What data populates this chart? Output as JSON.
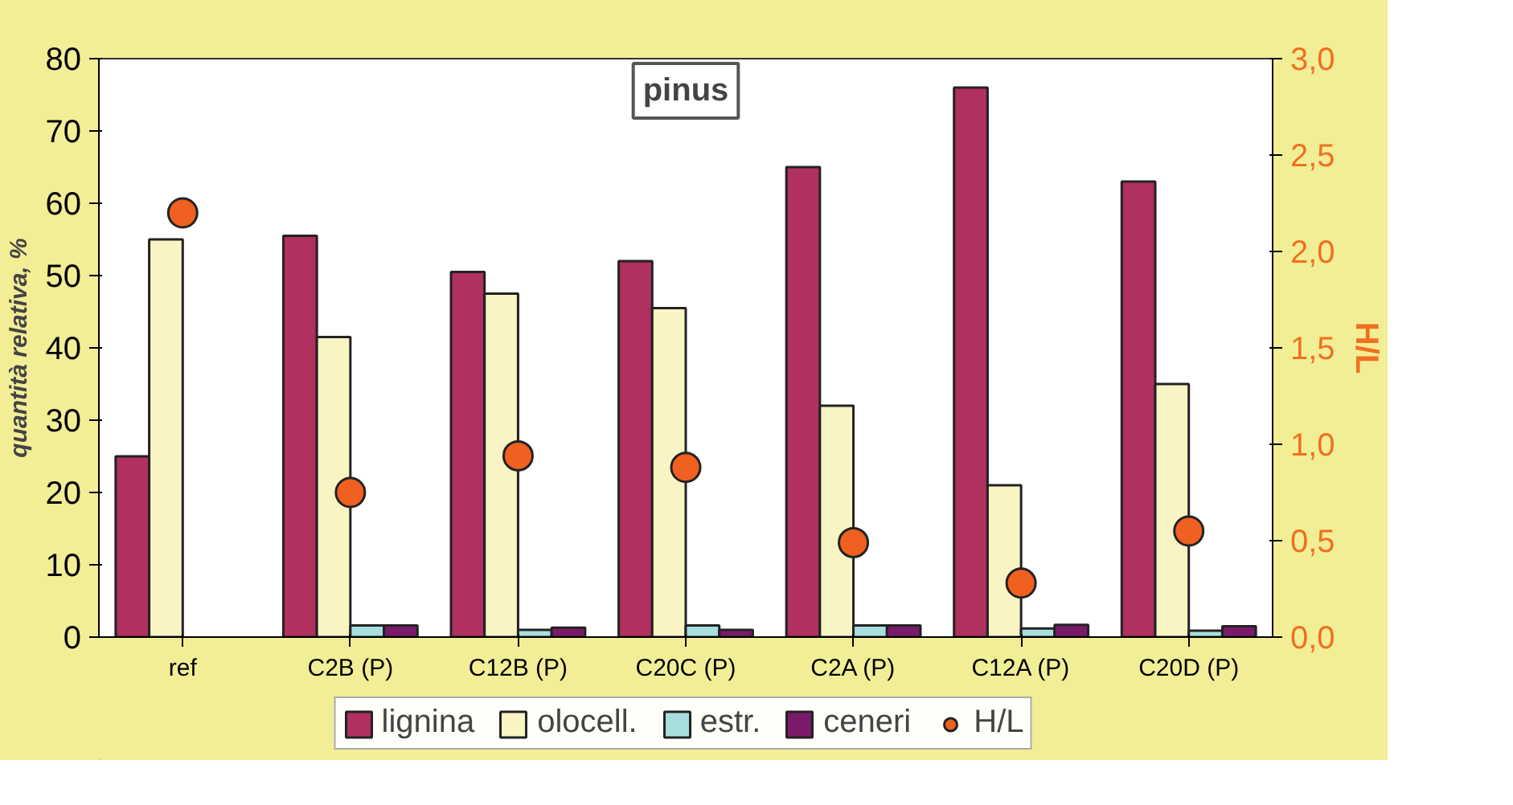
{
  "chart_data": {
    "type": "bar",
    "title": "pinus",
    "ylabel": "quantità relativa, %",
    "y2label": "H/L",
    "categories": [
      "ref",
      "C2B (P)",
      "C12B (P)",
      "C20C (P)",
      "C2A (P)",
      "C12A (P)",
      "C20D (P)"
    ],
    "series": [
      {
        "name": "lignina",
        "color": "#b03060",
        "values": [
          25,
          55.5,
          50.5,
          52,
          65,
          76,
          63
        ]
      },
      {
        "name": "olocell.",
        "color": "#f8f4c4",
        "values": [
          55,
          41.5,
          47.5,
          45.5,
          32,
          21,
          35
        ]
      },
      {
        "name": "estr.",
        "color": "#a8dede",
        "values": [
          null,
          1.6,
          1.0,
          1.6,
          1.6,
          1.2,
          0.9
        ]
      },
      {
        "name": "ceneri",
        "color": "#7a1a6a",
        "values": [
          null,
          1.6,
          1.3,
          1.0,
          1.6,
          1.7,
          1.5
        ]
      },
      {
        "name": "H/L",
        "type": "scatter",
        "axis": "y2",
        "marker": "circle",
        "color": "#f06020",
        "values": [
          2.2,
          0.75,
          0.94,
          0.88,
          0.49,
          0.28,
          0.55
        ]
      }
    ],
    "ylim": [
      0,
      80
    ],
    "yticks": [
      0,
      10,
      20,
      30,
      40,
      50,
      60,
      70,
      80
    ],
    "y2lim": [
      0,
      3
    ],
    "y2ticks": [
      {
        "value": 0,
        "label": "0,0"
      },
      {
        "value": 0.5,
        "label": "0,5"
      },
      {
        "value": 1,
        "label": "1,0"
      },
      {
        "value": 1.5,
        "label": "1,5"
      },
      {
        "value": 2,
        "label": "2,0"
      },
      {
        "value": 2.5,
        "label": "2,5"
      },
      {
        "value": 3,
        "label": "3,0"
      }
    ],
    "grid": false,
    "legend": "bottom"
  }
}
